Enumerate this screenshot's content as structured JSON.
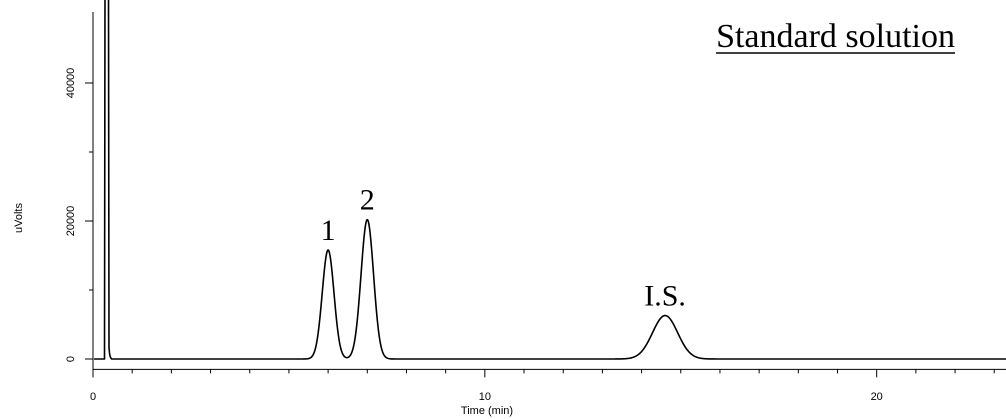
{
  "chart_data": {
    "type": "line",
    "title": "Standard solution",
    "xlabel": "Time (min)",
    "ylabel": "uVolts",
    "xlim": [
      0,
      23.3
    ],
    "ylim": [
      -1500,
      50000
    ],
    "x_ticks": [
      0,
      10,
      20
    ],
    "x_tick_labels": [
      "0",
      "10",
      "20"
    ],
    "x_minor_step": 1,
    "y_ticks": [
      0,
      20000,
      40000
    ],
    "y_tick_labels": [
      "0",
      "20000",
      "40000"
    ],
    "y_minor_ticks": [
      10000,
      30000
    ],
    "grid": false,
    "baseline": 0,
    "solvent_front": {
      "time": 0.35,
      "note": "off-scale spike"
    },
    "series": [
      {
        "peaks": [
          {
            "label": "1",
            "time": 6.0,
            "height": 15800,
            "width": 0.15
          },
          {
            "label": "2",
            "time": 7.0,
            "height": 20200,
            "width": 0.16
          },
          {
            "label": "I.S.",
            "time": 14.6,
            "height": 6300,
            "width": 0.32
          }
        ]
      }
    ]
  }
}
